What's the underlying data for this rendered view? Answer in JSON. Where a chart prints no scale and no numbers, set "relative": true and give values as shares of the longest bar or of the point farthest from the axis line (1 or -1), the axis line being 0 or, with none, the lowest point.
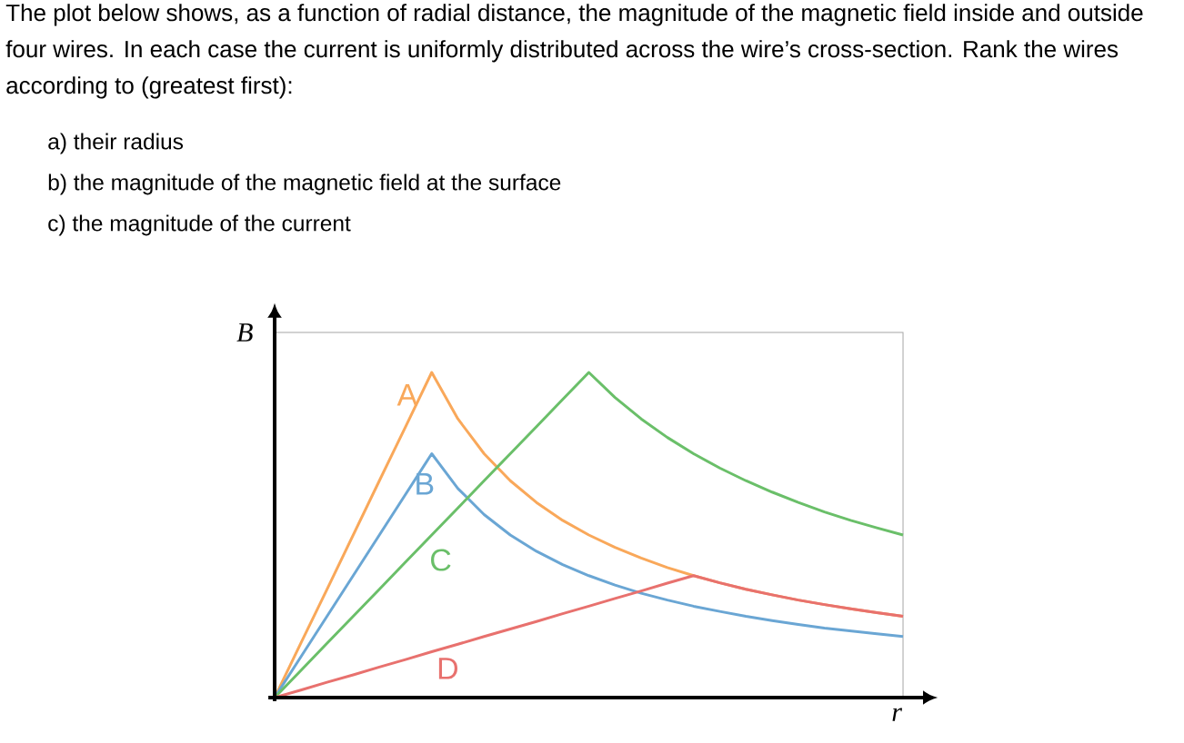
{
  "chart_data": {
    "type": "line",
    "relative": true,
    "title": "The plot below shows, as a function of radial distance, the magnitude of the magnetic field inside and outside four wires. In each case the current is uniformly distributed across the wire’s cross-section. Rank the wires according to (greatest first):",
    "annotations": [
      "a) their radius",
      "b) the magnitude of the magnetic field at the surface",
      "c) the magnitude of the current"
    ],
    "xlabel": "r",
    "ylabel": "B",
    "legend": false,
    "marker": "none",
    "line_style": "solid",
    "categories": [
      null,
      null,
      null,
      null,
      null,
      null,
      null,
      null,
      null,
      null,
      null,
      null,
      null,
      null,
      null,
      null,
      null,
      null,
      null,
      null,
      null,
      null,
      null,
      null,
      null
    ],
    "series": [
      {
        "name": "A",
        "color": "#f9a85a",
        "values": [
          0,
          0.167,
          0.333,
          0.5,
          0.667,
          0.833,
          1,
          0.857,
          0.75,
          0.667,
          0.6,
          0.545,
          0.5,
          0.462,
          0.429,
          0.4,
          0.375,
          0.353,
          0.333,
          0.316,
          0.3,
          0.286,
          0.273,
          0.261,
          0.25
        ]
      },
      {
        "name": "B",
        "color": "#6aa6d4",
        "values": [
          0,
          0.125,
          0.25,
          0.375,
          0.5,
          0.625,
          0.75,
          0.643,
          0.563,
          0.5,
          0.45,
          0.409,
          0.375,
          0.346,
          0.321,
          0.3,
          0.281,
          0.265,
          0.25,
          0.237,
          0.225,
          0.214,
          0.205,
          0.196,
          0.188
        ]
      },
      {
        "name": "C",
        "color": "#6abf69",
        "values": [
          0,
          0.083,
          0.167,
          0.25,
          0.333,
          0.417,
          0.5,
          0.583,
          0.667,
          0.75,
          0.833,
          0.917,
          1,
          0.923,
          0.857,
          0.8,
          0.75,
          0.706,
          0.667,
          0.632,
          0.6,
          0.571,
          0.545,
          0.522,
          0.5
        ]
      },
      {
        "name": "D",
        "color": "#e8716e",
        "values": [
          0,
          0.023,
          0.047,
          0.07,
          0.094,
          0.117,
          0.141,
          0.164,
          0.188,
          0.211,
          0.234,
          0.258,
          0.281,
          0.305,
          0.328,
          0.352,
          0.375,
          0.353,
          0.333,
          0.316,
          0.3,
          0.286,
          0.273,
          0.261,
          0.25
        ]
      }
    ]
  }
}
